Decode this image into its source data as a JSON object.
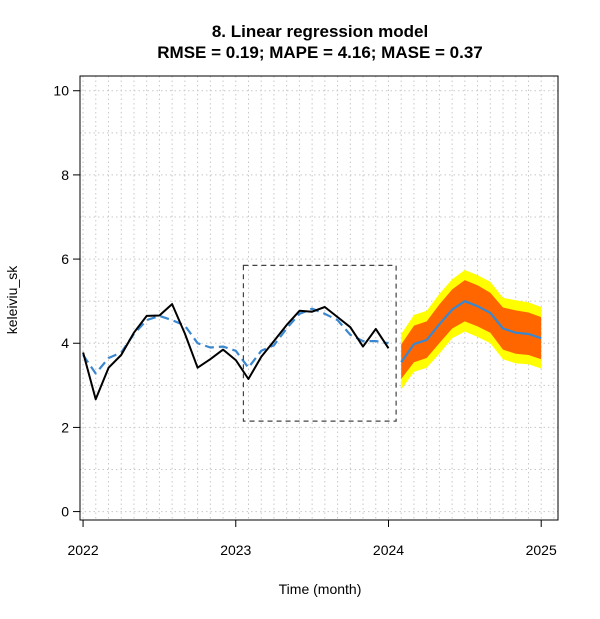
{
  "chart_data": {
    "type": "line",
    "title_line1": "8. Linear regression model",
    "title_line2": "RMSE =  0.19; MAPE =  4.16; MASE =  0.37",
    "xlabel": "Time (month)",
    "ylabel": "keleiviu_sk",
    "xlim": [
      2021.98,
      2025.11
    ],
    "ylim": [
      -0.2,
      10.35
    ],
    "x_ticks": [
      "2022",
      "2023",
      "2024",
      "2025"
    ],
    "y_ticks": [
      "0",
      "2",
      "4",
      "6",
      "8",
      "10"
    ],
    "grid": true,
    "colors": {
      "actual": "#000000",
      "fitted": "#3a87d0",
      "forecast": "#3a87d0",
      "band80": "#ff6600",
      "band95": "#ffff00",
      "grid": "#c8c8c8",
      "box": "#444444"
    },
    "series": [
      {
        "role": "actual",
        "x": [
          2022.0,
          2022.083,
          2022.167,
          2022.25,
          2022.333,
          2022.417,
          2022.5,
          2022.583,
          2022.667,
          2022.75,
          2022.833,
          2022.917,
          2023.0,
          2023.083,
          2023.167,
          2023.25,
          2023.333,
          2023.417,
          2023.5,
          2023.583,
          2023.667,
          2023.75,
          2023.833,
          2023.917,
          2024.0
        ],
        "values": [
          3.78,
          2.67,
          3.42,
          3.72,
          4.25,
          4.65,
          4.66,
          4.93,
          4.23,
          3.42,
          3.62,
          3.85,
          3.6,
          3.15,
          3.68,
          4.05,
          4.43,
          4.77,
          4.75,
          4.86,
          4.62,
          4.38,
          3.92,
          4.34,
          3.88
        ]
      },
      {
        "role": "fitted",
        "x": [
          2022.0,
          2022.083,
          2022.167,
          2022.25,
          2022.333,
          2022.417,
          2022.5,
          2022.583,
          2022.667,
          2022.75,
          2022.833,
          2022.917,
          2023.0,
          2023.083,
          2023.167,
          2023.25,
          2023.333,
          2023.417,
          2023.5,
          2023.583,
          2023.667,
          2023.75,
          2023.833,
          2023.917,
          2024.0
        ],
        "values": [
          3.72,
          3.28,
          3.65,
          3.78,
          4.22,
          4.55,
          4.65,
          4.55,
          4.42,
          4.0,
          3.9,
          3.92,
          3.82,
          3.42,
          3.82,
          3.95,
          4.35,
          4.7,
          4.82,
          4.7,
          4.55,
          4.2,
          4.05,
          4.05,
          4.0
        ]
      },
      {
        "role": "forecast",
        "x": [
          2024.083,
          2024.167,
          2024.25,
          2024.333,
          2024.417,
          2024.5,
          2024.583,
          2024.667,
          2024.75,
          2024.833,
          2024.917,
          2025.0
        ],
        "values": [
          3.55,
          3.98,
          4.08,
          4.45,
          4.8,
          5.0,
          4.88,
          4.72,
          4.35,
          4.25,
          4.22,
          4.12
        ]
      }
    ],
    "band80": {
      "lower": [
        3.15,
        3.55,
        3.65,
        4.0,
        4.35,
        4.52,
        4.4,
        4.25,
        3.85,
        3.75,
        3.72,
        3.62
      ],
      "upper": [
        3.97,
        4.42,
        4.52,
        4.92,
        5.28,
        5.5,
        5.38,
        5.2,
        4.85,
        4.78,
        4.73,
        4.62
      ]
    },
    "band95": {
      "lower": [
        2.9,
        3.32,
        3.42,
        3.75,
        4.12,
        4.28,
        4.15,
        4.0,
        3.62,
        3.52,
        3.5,
        3.4
      ],
      "upper": [
        4.22,
        4.67,
        4.77,
        5.17,
        5.52,
        5.74,
        5.62,
        5.46,
        5.08,
        5.02,
        4.97,
        4.86
      ]
    },
    "zoom_box": {
      "x": [
        2023.05,
        2024.05
      ],
      "y": [
        2.15,
        5.85
      ]
    }
  }
}
